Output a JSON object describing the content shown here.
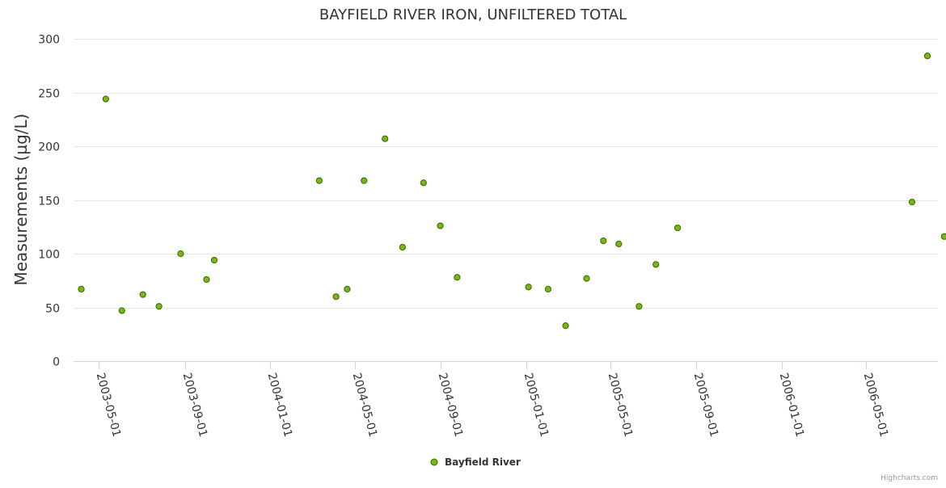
{
  "chart_data": {
    "type": "scatter",
    "title": "BAYFIELD RIVER IRON, UNFILTERED TOTAL",
    "xlabel": "",
    "ylabel": "Measurements (µg/L)",
    "x_axis_type": "date",
    "xlim": [
      "2003-03-26",
      "2006-08-12"
    ],
    "ylim": [
      0,
      300
    ],
    "y_ticks": [
      0,
      50,
      100,
      150,
      200,
      250,
      300
    ],
    "x_tick_labels": [
      "2003-05-01",
      "2003-09-01",
      "2004-01-01",
      "2004-05-01",
      "2004-09-01",
      "2005-01-01",
      "2005-05-01",
      "2005-09-01",
      "2006-01-01",
      "2006-05-01"
    ],
    "grid": true,
    "legend_position": "bottom-center",
    "series": [
      {
        "name": "Bayfield River",
        "color": "#7cb518",
        "stroke": "#2f6b00",
        "points": [
          {
            "x": "2003-04-06",
            "y": 67
          },
          {
            "x": "2003-05-11",
            "y": 244
          },
          {
            "x": "2003-06-03",
            "y": 47
          },
          {
            "x": "2003-07-03",
            "y": 62
          },
          {
            "x": "2003-07-26",
            "y": 51
          },
          {
            "x": "2003-08-26",
            "y": 100
          },
          {
            "x": "2003-10-02",
            "y": 76
          },
          {
            "x": "2003-10-13",
            "y": 94
          },
          {
            "x": "2004-03-11",
            "y": 168
          },
          {
            "x": "2004-04-04",
            "y": 60
          },
          {
            "x": "2004-04-20",
            "y": 67
          },
          {
            "x": "2004-05-14",
            "y": 168
          },
          {
            "x": "2004-06-13",
            "y": 207
          },
          {
            "x": "2004-07-08",
            "y": 106
          },
          {
            "x": "2004-08-07",
            "y": 166
          },
          {
            "x": "2004-08-31",
            "y": 126
          },
          {
            "x": "2004-09-24",
            "y": 78
          },
          {
            "x": "2005-01-04",
            "y": 69
          },
          {
            "x": "2005-02-01",
            "y": 67
          },
          {
            "x": "2005-02-26",
            "y": 33
          },
          {
            "x": "2005-03-28",
            "y": 77
          },
          {
            "x": "2005-04-21",
            "y": 112
          },
          {
            "x": "2005-05-13",
            "y": 109
          },
          {
            "x": "2005-06-11",
            "y": 51
          },
          {
            "x": "2005-07-05",
            "y": 90
          },
          {
            "x": "2005-08-05",
            "y": 124
          },
          {
            "x": "2006-07-06",
            "y": 148
          },
          {
            "x": "2006-07-28",
            "y": 284
          },
          {
            "x": "2006-08-21",
            "y": 116
          }
        ]
      }
    ]
  },
  "legend": {
    "label": "Bayfield River"
  },
  "credits": "Highcharts.com"
}
